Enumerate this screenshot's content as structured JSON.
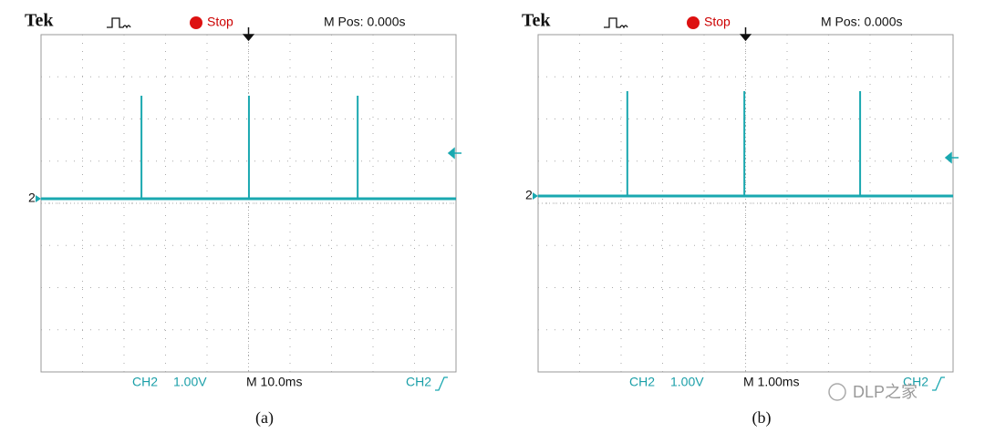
{
  "panels": [
    {
      "brand": "Tek",
      "status": "Stop",
      "position": "M Pos: 0.000s",
      "channel": "CH2",
      "volts": "1.00V",
      "timebase": "M 10.0ms",
      "trigger_channel": "CH2",
      "channel_marker": "2",
      "caption": "(a)"
    },
    {
      "brand": "Tek",
      "status": "Stop",
      "position": "M Pos: 0.000s",
      "channel": "CH2",
      "volts": "1.00V",
      "timebase": "M 1.00ms",
      "trigger_channel": "CH2",
      "channel_marker": "2",
      "caption": "(b)"
    }
  ],
  "watermark": "DLP之家"
}
